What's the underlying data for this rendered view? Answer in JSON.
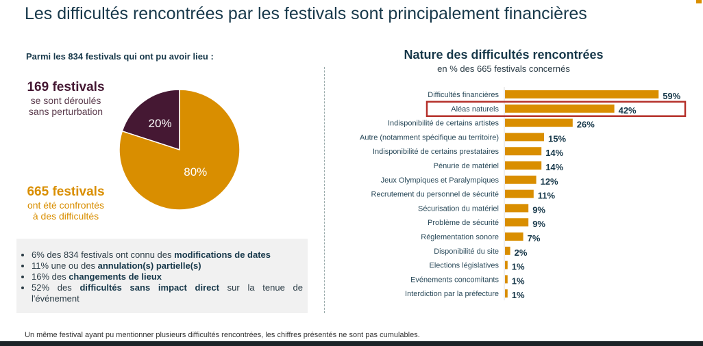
{
  "title": "Les difficultés rencontrées par les festivals sont principalement financières",
  "left": {
    "subtitle": "Parmi les 834 festivals qui ont pu avoir lieu :",
    "group1": {
      "count": "169 festivals",
      "line1": "se sont déroulés",
      "line2": "sans perturbation"
    },
    "group2": {
      "count": "665 festivals",
      "line1": "ont été confrontés",
      "line2": "à des difficultés"
    },
    "bullets": [
      {
        "pre": "6% des 834 festivals ont connu des ",
        "bold": "modifications de dates",
        "post": ""
      },
      {
        "pre": "11% une ou des ",
        "bold": "annulation(s) partielle(s)",
        "post": ""
      },
      {
        "pre": "16% des ",
        "bold": "changements de lieux",
        "post": ""
      },
      {
        "pre": "52% des ",
        "bold": "difficultés sans impact direct",
        "post": " sur la tenue de l'événement"
      }
    ]
  },
  "footnote": "Un même festival ayant pu mentionner plusieurs difficultés rencontrées, les chiffres présentés ne sont pas cumulables.",
  "colors": {
    "orange": "#d98e00",
    "purple": "#451833",
    "navy": "#17384a",
    "highlight": "#b5302a"
  },
  "chart_data": [
    {
      "type": "pie",
      "labels": [
        "Sans perturbation",
        "Confrontés à des difficultés"
      ],
      "values": [
        20,
        80
      ],
      "value_labels": [
        "20%",
        "80%"
      ],
      "colors": [
        "#451833",
        "#d98e00"
      ]
    },
    {
      "type": "bar",
      "orientation": "horizontal",
      "title": "Nature des difficultés rencontrées",
      "subtitle": "en % des 665 festivals concernés",
      "categories": [
        "Difficultés financières",
        "Aléas naturels",
        "Indisponibilité de certains artistes",
        "Autre (notamment spécifique au territoire)",
        "Indisponibilité de certains prestataires",
        "Pénurie de matériel",
        "Jeux Olympiques et Paralympiques",
        "Recrutement du personnel de sécurité",
        "Sécurisation du matériel",
        "Problème de sécurité",
        "Réglementation sonore",
        "Disponibilité du site",
        "Elections législatives",
        "Evénements concomitants",
        "Interdiction par la préfecture"
      ],
      "values": [
        59,
        42,
        26,
        15,
        14,
        14,
        12,
        11,
        9,
        9,
        7,
        2,
        1,
        1,
        1
      ],
      "highlighted": "Aléas naturels",
      "unit": "%"
    }
  ]
}
